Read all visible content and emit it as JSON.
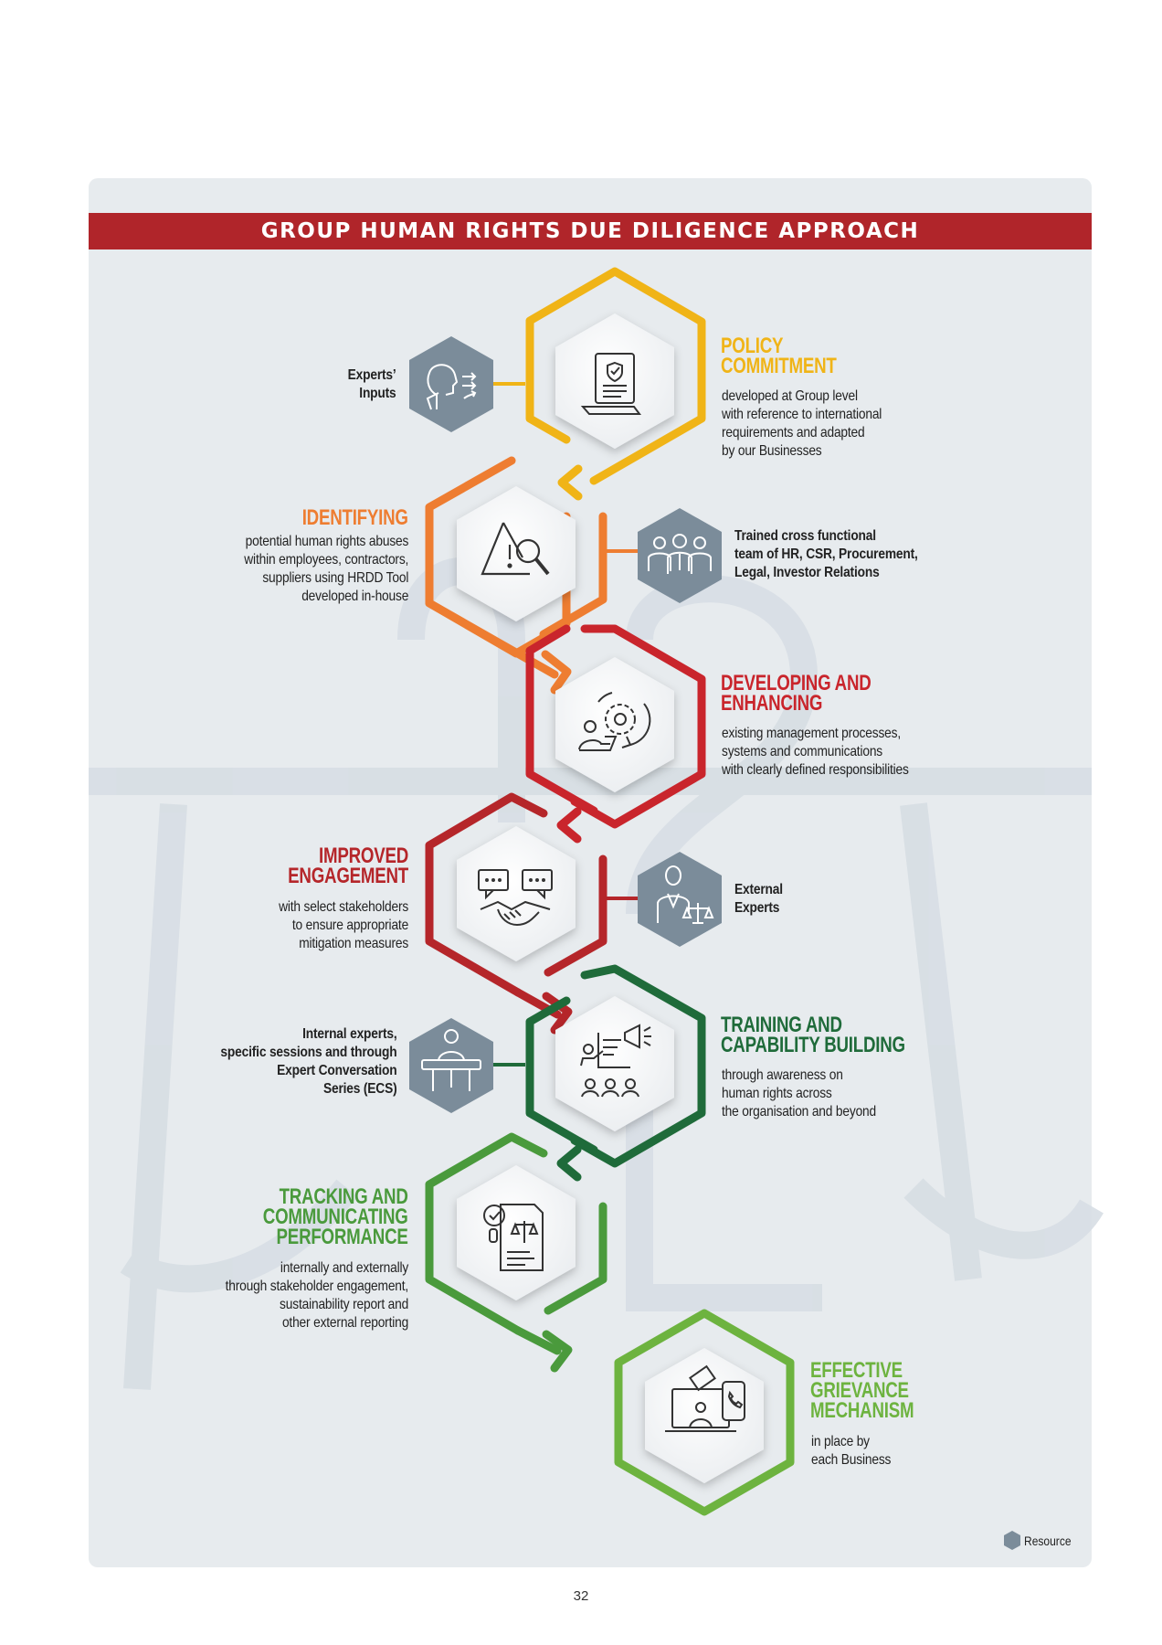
{
  "banner_title": "GROUP HUMAN RIGHTS DUE DILIGENCE APPROACH",
  "colors": {
    "banner": "#b0252a",
    "policy": "#f0b417",
    "identifying": "#ee7d31",
    "developing": "#c9252c",
    "engagement": "#b5262a",
    "training": "#1f6b3a",
    "tracking": "#4a9a3c",
    "grievance": "#6db33f",
    "resource": "#7b8c9a"
  },
  "steps": [
    {
      "title_lines": [
        "POLICY",
        "COMMITMENT"
      ],
      "description": "developed at Group level\nwith reference to international\nrequirements and adapted\nby our Businesses",
      "icon": "policy-document-icon"
    },
    {
      "title_lines": [
        "IDENTIFYING"
      ],
      "description": "potential human rights abuses\nwithin employees, contractors,\nsuppliers using HRDD Tool\ndeveloped in-house",
      "icon": "warning-search-icon"
    },
    {
      "title_lines": [
        "DEVELOPING AND",
        "ENHANCING"
      ],
      "description": "existing management processes,\nsystems and communications\nwith clearly defined responsibilities",
      "icon": "gear-process-icon"
    },
    {
      "title_lines": [
        "IMPROVED",
        "ENGAGEMENT"
      ],
      "description": "with select stakeholders\nto ensure appropriate\nmitigation measures",
      "icon": "handshake-chat-icon"
    },
    {
      "title_lines": [
        "TRAINING AND",
        "CAPABILITY BUILDING"
      ],
      "description": "through awareness on\nhuman rights across\nthe organisation and beyond",
      "icon": "training-presentation-icon"
    },
    {
      "title_lines": [
        "TRACKING AND",
        "COMMUNICATING",
        "PERFORMANCE"
      ],
      "description": "internally and externally\nthrough stakeholder engagement,\nsustainability report and\nother external reporting",
      "icon": "report-scales-icon"
    },
    {
      "title_lines": [
        "EFFECTIVE",
        "GRIEVANCE",
        "MECHANISM"
      ],
      "description": "in place by\neach Business",
      "icon": "grievance-laptop-icon"
    }
  ],
  "resources": [
    {
      "text": "Experts’\nInputs",
      "icon": "expert-inputs-icon"
    },
    {
      "text": "Trained cross functional\nteam of HR, CSR, Procurement,\nLegal, Investor Relations",
      "icon": "team-icon"
    },
    {
      "text": "External\nExperts",
      "icon": "lawyer-scales-icon"
    },
    {
      "text": "Internal experts,\nspecific sessions and through\nExpert Conversation\nSeries (ECS)",
      "icon": "speaker-podium-icon"
    }
  ],
  "legend_label": "Resource",
  "page_number": "32"
}
